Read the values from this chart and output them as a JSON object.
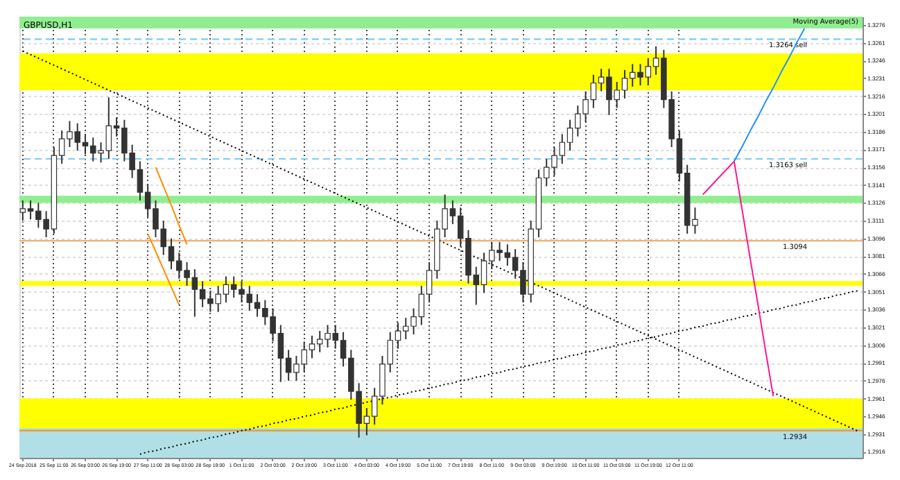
{
  "chart_data": {
    "type": "candlestick",
    "title": "GBPUSD,H1",
    "color": "#333333",
    "categories": [
      "24 Sep 2018",
      null,
      null,
      null,
      "25 Sep 11:00",
      null,
      null,
      null,
      "26 Sep 03:00",
      null,
      null,
      null,
      "26 Sep 19:00",
      null,
      null,
      null,
      "27 Sep 11:00",
      null,
      null,
      null,
      "28 Sep 03:00",
      null,
      null,
      null,
      "28 Sep 19:00",
      null,
      null,
      null,
      "1 Oct 11:00",
      null,
      null,
      null,
      "2 Oct 03:00",
      null,
      null,
      null,
      "2 Oct 19:00",
      null,
      null,
      null,
      "3 Oct 11:00",
      null,
      null,
      null,
      "4 Oct 03:00",
      null,
      null,
      null,
      "4 Oct 19:00",
      null,
      null,
      null,
      "5 Oct 11:00",
      null,
      null,
      null,
      "7 Oct 19:00",
      null,
      null,
      null,
      "8 Oct 11:00",
      null,
      null,
      null,
      "9 Oct 03:00",
      null,
      null,
      null,
      "9 Oct 19:00",
      null,
      null,
      null,
      "10 Oct 11:00",
      null,
      null,
      null,
      "11 Oct 03:00",
      null,
      null,
      null,
      "11 Oct 19:00",
      null,
      null,
      null,
      "12 Oct 11:00",
      null,
      null,
      null,
      null,
      null,
      null,
      null,
      null,
      null,
      null,
      null,
      null,
      null,
      null,
      null,
      null,
      null,
      null,
      null,
      null,
      null,
      null,
      null
    ],
    "ohlc": [
      [
        1.3118,
        1.3128,
        1.3111,
        1.3121
      ],
      [
        1.3121,
        1.3128,
        1.3112,
        1.3119
      ],
      [
        1.3119,
        1.3126,
        1.3105,
        1.3112
      ],
      [
        1.3112,
        1.3119,
        1.3097,
        1.3104
      ],
      [
        1.3104,
        1.3173,
        1.31,
        1.3166
      ],
      [
        1.3166,
        1.3187,
        1.3159,
        1.318
      ],
      [
        1.318,
        1.3195,
        1.3173,
        1.3186
      ],
      [
        1.3186,
        1.3193,
        1.317,
        1.3177
      ],
      [
        1.3177,
        1.3184,
        1.3167,
        1.3174
      ],
      [
        1.3174,
        1.3181,
        1.3161,
        1.3168
      ],
      [
        1.3168,
        1.3177,
        1.316,
        1.317
      ],
      [
        1.317,
        1.3215,
        1.3163,
        1.3191
      ],
      [
        1.3191,
        1.3198,
        1.3182,
        1.3189
      ],
      [
        1.3189,
        1.3196,
        1.3161,
        1.3168
      ],
      [
        1.3168,
        1.3175,
        1.3147,
        1.3154
      ],
      [
        1.3154,
        1.3161,
        1.3128,
        1.3135
      ],
      [
        1.3135,
        1.3142,
        1.3114,
        1.3121
      ],
      [
        1.3121,
        1.3128,
        1.3097,
        1.3104
      ],
      [
        1.3104,
        1.3111,
        1.3082,
        1.3089
      ],
      [
        1.3089,
        1.3096,
        1.307,
        1.3077
      ],
      [
        1.3077,
        1.3084,
        1.3062,
        1.3069
      ],
      [
        1.3069,
        1.3076,
        1.3056,
        1.3063
      ],
      [
        1.3063,
        1.307,
        1.303,
        1.3053
      ],
      [
        1.3053,
        1.306,
        1.3038,
        1.3045
      ],
      [
        1.3045,
        1.3052,
        1.3034,
        1.3041
      ],
      [
        1.3041,
        1.3056,
        1.3034,
        1.3049
      ],
      [
        1.3049,
        1.3064,
        1.3042,
        1.3057
      ],
      [
        1.3057,
        1.3064,
        1.3046,
        1.3053
      ],
      [
        1.3053,
        1.306,
        1.3042,
        1.3049
      ],
      [
        1.3049,
        1.3056,
        1.3035,
        1.3042
      ],
      [
        1.3042,
        1.3049,
        1.303,
        1.3037
      ],
      [
        1.3037,
        1.3044,
        1.3023,
        1.303
      ],
      [
        1.303,
        1.3037,
        1.3009,
        1.3016
      ],
      [
        1.3016,
        1.3023,
        1.2975,
        1.2995
      ],
      [
        1.2995,
        1.3002,
        1.2976,
        1.2983
      ],
      [
        1.2983,
        1.2997,
        1.2976,
        1.299
      ],
      [
        1.299,
        1.3009,
        1.2983,
        1.3002
      ],
      [
        1.3002,
        1.3014,
        1.2995,
        1.3007
      ],
      [
        1.3007,
        1.3018,
        1.3,
        1.3011
      ],
      [
        1.3011,
        1.3023,
        1.3004,
        1.3016
      ],
      [
        1.3016,
        1.3023,
        1.3003,
        1.301
      ],
      [
        1.301,
        1.3017,
        1.2988,
        1.2995
      ],
      [
        1.2995,
        1.3002,
        1.296,
        1.2967
      ],
      [
        1.2967,
        1.2974,
        1.2928,
        1.294
      ],
      [
        1.294,
        1.2953,
        1.293,
        1.2946
      ],
      [
        1.2946,
        1.297,
        1.2939,
        1.2963
      ],
      [
        1.2963,
        1.2997,
        1.2956,
        1.299
      ],
      [
        1.299,
        1.3017,
        1.2983,
        1.301
      ],
      [
        1.301,
        1.3025,
        1.3003,
        1.3018
      ],
      [
        1.3018,
        1.3029,
        1.3011,
        1.3022
      ],
      [
        1.3022,
        1.3037,
        1.3015,
        1.303
      ],
      [
        1.303,
        1.3056,
        1.3023,
        1.3049
      ],
      [
        1.3049,
        1.3076,
        1.3042,
        1.3069
      ],
      [
        1.3069,
        1.3111,
        1.3062,
        1.3104
      ],
      [
        1.3104,
        1.3133,
        1.3097,
        1.3121
      ],
      [
        1.3121,
        1.3128,
        1.3108,
        1.3115
      ],
      [
        1.3115,
        1.3122,
        1.3089,
        1.3096
      ],
      [
        1.3096,
        1.3103,
        1.3058,
        1.3065
      ],
      [
        1.3065,
        1.3072,
        1.304,
        1.3057
      ],
      [
        1.3057,
        1.3084,
        1.305,
        1.3077
      ],
      [
        1.3077,
        1.3093,
        1.307,
        1.3086
      ],
      [
        1.3086,
        1.3093,
        1.3077,
        1.3084
      ],
      [
        1.3084,
        1.3091,
        1.3073,
        1.308
      ],
      [
        1.308,
        1.3087,
        1.3062,
        1.3069
      ],
      [
        1.3069,
        1.3076,
        1.3042,
        1.3049
      ],
      [
        1.3049,
        1.3111,
        1.3042,
        1.3104
      ],
      [
        1.3104,
        1.3154,
        1.3097,
        1.3147
      ],
      [
        1.3147,
        1.3163,
        1.314,
        1.3156
      ],
      [
        1.3156,
        1.3173,
        1.3149,
        1.3166
      ],
      [
        1.3166,
        1.3184,
        1.3159,
        1.3177
      ],
      [
        1.3177,
        1.3196,
        1.317,
        1.3189
      ],
      [
        1.3189,
        1.3208,
        1.3182,
        1.3201
      ],
      [
        1.3201,
        1.322,
        1.3194,
        1.3213
      ],
      [
        1.3213,
        1.3234,
        1.3206,
        1.3227
      ],
      [
        1.3227,
        1.3239,
        1.322,
        1.3232
      ],
      [
        1.3232,
        1.3239,
        1.32,
        1.3213
      ],
      [
        1.3213,
        1.3228,
        1.3206,
        1.3221
      ],
      [
        1.3221,
        1.3238,
        1.3214,
        1.3231
      ],
      [
        1.3231,
        1.3243,
        1.3224,
        1.3236
      ],
      [
        1.3236,
        1.3243,
        1.3225,
        1.3232
      ],
      [
        1.3232,
        1.3248,
        1.3225,
        1.3241
      ],
      [
        1.3241,
        1.3258,
        1.3234,
        1.3248
      ],
      [
        1.3248,
        1.3255,
        1.3206,
        1.3213
      ],
      [
        1.3213,
        1.322,
        1.3173,
        1.318
      ],
      [
        1.318,
        1.3187,
        1.3144,
        1.3151
      ],
      [
        1.3151,
        1.3158,
        1.31,
        1.3107
      ],
      [
        1.3107,
        1.3122,
        1.31,
        1.3112
      ],
      null,
      null,
      null,
      null,
      null,
      null,
      null,
      null,
      null,
      null,
      null,
      null,
      null,
      null,
      null,
      null,
      null,
      null,
      null,
      null,
      null
    ],
    "ylim": [
      1.2911,
      1.3283
    ],
    "yticks": [
      1.2916,
      1.2931,
      1.2946,
      1.2961,
      1.2976,
      1.2991,
      1.3006,
      1.3021,
      1.3036,
      1.3051,
      1.3066,
      1.3081,
      1.3096,
      1.3111,
      1.3126,
      1.3141,
      1.3156,
      1.3171,
      1.3186,
      1.3201,
      1.3216,
      1.3231,
      1.3246,
      1.3261,
      1.3276
    ],
    "grid": true,
    "bands": [
      {
        "axis": "y",
        "from": 1.3273,
        "to": 1.3283,
        "label": "Moving Average(5)",
        "color": "#90ee90"
      },
      {
        "axis": "y",
        "from": 1.3221,
        "to": 1.3252,
        "color": "#ffff00"
      },
      {
        "axis": "y",
        "from": 1.3126,
        "to": 1.3132,
        "color": "#90ee90"
      },
      {
        "axis": "y",
        "from": 1.3056,
        "to": 1.306,
        "color": "#ffff00"
      },
      {
        "axis": "y",
        "from": 1.2911,
        "to": 1.2961,
        "color": "#ffff00"
      },
      {
        "axis": "y",
        "from": 1.2911,
        "to": 1.2936,
        "color": "#b0e0e6"
      }
    ],
    "ref_lines": [
      {
        "axis": "y",
        "value": 1.3264,
        "label": "1.3264 sell",
        "color": "#87cefa",
        "line_style": "dashed"
      },
      {
        "axis": "y",
        "value": 1.3163,
        "label": "1.3163 sell",
        "color": "#87cefa",
        "line_style": "dashed"
      },
      {
        "axis": "y",
        "value": 1.3094,
        "label": "1.3094",
        "color": "#f5b070",
        "line_style": "solid"
      },
      {
        "axis": "y",
        "value": 1.2934,
        "label": "1.2934",
        "color": "#e0a040",
        "line_style": "solid"
      }
    ],
    "series": [
      {
        "type": "line",
        "color": "#000000",
        "line_style": "dotted",
        "values": [
          1.3254,
          1.3251,
          1.3248,
          1.3245,
          1.3242,
          1.3239,
          1.3236,
          1.3233,
          1.323,
          1.3227,
          1.3224,
          1.3221,
          1.3218,
          1.3215,
          1.3212,
          1.3209,
          1.3206,
          1.3203,
          1.32,
          1.3197,
          1.3194,
          1.3191,
          1.3188,
          1.3185,
          1.3182,
          1.3179,
          1.3176,
          1.3173,
          1.317,
          1.3167,
          1.3164,
          1.3161,
          1.3158,
          1.3155,
          1.3152,
          1.3149,
          1.3146,
          1.3143,
          1.314,
          1.3137,
          1.3134,
          1.3131,
          1.3128,
          1.3125,
          1.3122,
          1.3119,
          1.3116,
          1.3113,
          1.311,
          1.3107,
          1.3104,
          1.3101,
          1.3098,
          1.3095,
          1.3092,
          1.3089,
          1.3086,
          1.3083,
          1.308,
          1.3077,
          1.3074,
          1.3071,
          1.3068,
          1.3065,
          1.3062,
          1.3059,
          1.3056,
          1.3053,
          1.305,
          1.3047,
          1.3044,
          1.3041,
          1.3038,
          1.3035,
          1.3032,
          1.3029,
          1.3026,
          1.3023,
          1.302,
          1.3017,
          1.3014,
          1.3011,
          1.3008,
          1.3005,
          1.3002,
          1.2999,
          1.2996,
          1.2993,
          1.299,
          1.2987,
          1.2984,
          1.2981,
          1.2978,
          1.2975,
          1.2972,
          1.2969,
          1.2966,
          1.2963,
          1.296,
          1.2957,
          1.2954,
          1.2951,
          1.2948,
          1.2945,
          1.2942,
          1.2939,
          1.2936,
          1.2933
        ]
      },
      {
        "type": "line",
        "color": "#000000",
        "line_style": "dotted",
        "values": [
          null,
          null,
          null,
          null,
          null,
          null,
          null,
          null,
          null,
          null,
          null,
          null,
          null,
          null,
          null,
          1.2914,
          1.2916,
          1.2917,
          1.2919,
          1.292,
          1.2922,
          1.2923,
          1.2925,
          1.2926,
          1.2928,
          1.2929,
          1.2931,
          1.2932,
          1.2934,
          1.2935,
          1.2937,
          1.2938,
          1.294,
          1.2941,
          1.2943,
          1.2944,
          1.2946,
          1.2947,
          1.2949,
          1.295,
          1.2952,
          1.2953,
          1.2955,
          1.2956,
          1.2958,
          1.2959,
          1.2961,
          1.2962,
          1.2964,
          1.2965,
          1.2967,
          1.2968,
          1.297,
          1.2971,
          1.2973,
          1.2974,
          1.2976,
          1.2977,
          1.2979,
          1.298,
          1.2982,
          1.2983,
          1.2985,
          1.2986,
          1.2988,
          1.2989,
          1.2991,
          1.2992,
          1.2994,
          1.2995,
          1.2997,
          1.2998,
          1.3,
          1.3001,
          1.3003,
          1.3004,
          1.3006,
          1.3007,
          1.3009,
          1.301,
          1.3012,
          1.3013,
          1.3015,
          1.3016,
          1.3018,
          1.3019,
          1.3021,
          1.3022,
          1.3024,
          1.3025,
          1.3027,
          1.3028,
          1.303,
          1.3031,
          1.3033,
          1.3034,
          1.3036,
          1.3037,
          1.3039,
          1.304,
          1.3042,
          1.3043,
          1.3045,
          1.3046,
          1.3048,
          1.3049,
          1.3051,
          1.3052
        ]
      },
      {
        "type": "line",
        "color": "#ff8c00",
        "line_style": "solid",
        "values": [
          null,
          null,
          null,
          null,
          null,
          null,
          null,
          null,
          null,
          null,
          null,
          null,
          null,
          null,
          null,
          null,
          null,
          1.3156,
          1.314,
          1.3124,
          1.3107,
          1.3091,
          null,
          null,
          null,
          null,
          null,
          null,
          null,
          null,
          null,
          null,
          null,
          null,
          null,
          null,
          null,
          null,
          null,
          null,
          null,
          null,
          null,
          null,
          null,
          null,
          null,
          null,
          null,
          null,
          null,
          null,
          null,
          null,
          null,
          null,
          null,
          null,
          null,
          null,
          null,
          null,
          null,
          null,
          null,
          null,
          null,
          null,
          null,
          null,
          null,
          null,
          null,
          null,
          null,
          null,
          null,
          null,
          null,
          null,
          null,
          null,
          null,
          null,
          null,
          null,
          null,
          null,
          null,
          null,
          null,
          null,
          null,
          null,
          null,
          null,
          null,
          null,
          null,
          null,
          null,
          null,
          null,
          null,
          null,
          null,
          null,
          null
        ]
      },
      {
        "type": "line",
        "color": "#ff8c00",
        "line_style": "solid",
        "values": [
          null,
          null,
          null,
          null,
          null,
          null,
          null,
          null,
          null,
          null,
          null,
          null,
          null,
          null,
          null,
          null,
          1.31,
          1.3085,
          1.307,
          1.3055,
          1.304,
          null,
          null,
          null,
          null,
          null,
          null,
          null,
          null,
          null,
          null,
          null,
          null,
          null,
          null,
          null,
          null,
          null,
          null,
          null,
          null,
          null,
          null,
          null,
          null,
          null,
          null,
          null,
          null,
          null,
          null,
          null,
          null,
          null,
          null,
          null,
          null,
          null,
          null,
          null,
          null,
          null,
          null,
          null,
          null,
          null,
          null,
          null,
          null,
          null,
          null,
          null,
          null,
          null,
          null,
          null,
          null,
          null,
          null,
          null,
          null,
          null,
          null,
          null,
          null,
          null,
          null,
          null,
          null,
          null,
          null,
          null,
          null,
          null,
          null,
          null,
          null,
          null,
          null,
          null,
          null,
          null,
          null,
          null,
          null,
          null,
          null,
          null
        ]
      },
      {
        "type": "line",
        "color": "#ff1493",
        "line_style": "solid",
        "values": [
          null,
          null,
          null,
          null,
          null,
          null,
          null,
          null,
          null,
          null,
          null,
          null,
          null,
          null,
          null,
          null,
          null,
          null,
          null,
          null,
          null,
          null,
          null,
          null,
          null,
          null,
          null,
          null,
          null,
          null,
          null,
          null,
          null,
          null,
          null,
          null,
          null,
          null,
          null,
          null,
          null,
          null,
          null,
          null,
          null,
          null,
          null,
          null,
          null,
          null,
          null,
          null,
          null,
          null,
          null,
          null,
          null,
          null,
          null,
          null,
          null,
          null,
          null,
          null,
          null,
          null,
          null,
          null,
          null,
          null,
          null,
          null,
          null,
          null,
          null,
          null,
          null,
          null,
          null,
          null,
          null,
          null,
          null,
          null,
          null,
          null,
          null,
          1.3133,
          1.314,
          1.3147,
          1.3154,
          1.3161,
          1.3121,
          1.3081,
          1.3042,
          1.3002,
          1.2963,
          null,
          null,
          null,
          null,
          null,
          null,
          null,
          null,
          null,
          null,
          null
        ]
      },
      {
        "type": "line",
        "color": "#1e90ff",
        "line_style": "solid",
        "values": [
          null,
          null,
          null,
          null,
          null,
          null,
          null,
          null,
          null,
          null,
          null,
          null,
          null,
          null,
          null,
          null,
          null,
          null,
          null,
          null,
          null,
          null,
          null,
          null,
          null,
          null,
          null,
          null,
          null,
          null,
          null,
          null,
          null,
          null,
          null,
          null,
          null,
          null,
          null,
          null,
          null,
          null,
          null,
          null,
          null,
          null,
          null,
          null,
          null,
          null,
          null,
          null,
          null,
          null,
          null,
          null,
          null,
          null,
          null,
          null,
          null,
          null,
          null,
          null,
          null,
          null,
          null,
          null,
          null,
          null,
          null,
          null,
          null,
          null,
          null,
          null,
          null,
          null,
          null,
          null,
          null,
          null,
          null,
          null,
          null,
          null,
          null,
          null,
          null,
          null,
          null,
          1.3161,
          1.3173,
          1.3186,
          1.3198,
          1.3211,
          1.3223,
          1.3236,
          1.3248,
          1.3261,
          1.3273,
          null,
          null,
          null,
          null,
          null,
          null,
          null
        ]
      }
    ]
  }
}
